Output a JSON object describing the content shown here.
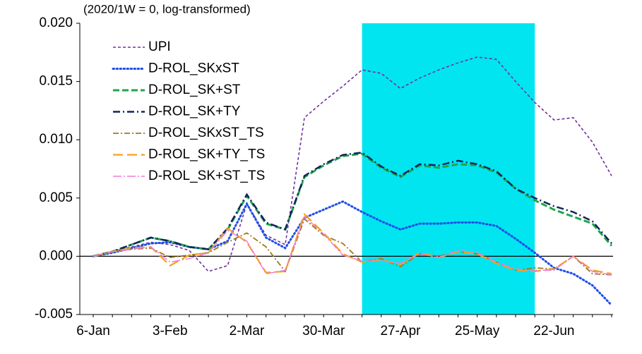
{
  "chart_data": {
    "type": "line",
    "subtitle": "(2020/1W = 0, log-transformed)",
    "categories": [
      "6-Jan",
      null,
      null,
      null,
      "3-Feb",
      null,
      null,
      null,
      "2-Mar",
      null,
      null,
      null,
      "30-Mar",
      null,
      null,
      null,
      "27-Apr",
      null,
      null,
      null,
      "25-May",
      null,
      null,
      null,
      "22-Jun",
      null,
      null,
      null
    ],
    "highlight": {
      "from": 14,
      "to": 23,
      "color": "#00e5f0"
    },
    "ylim": [
      -0.005,
      0.02
    ],
    "yticks": [
      -0.005,
      {
        "value": 0,
        "label": "0.000"
      },
      0.005,
      {
        "value": 0.01,
        "label": "0.010"
      },
      0.015,
      {
        "value": 0.02,
        "label": "0.020"
      }
    ],
    "series": [
      {
        "name": "UPI",
        "color": "#7030a0",
        "values": [
          0,
          0.0004,
          0.0008,
          0.0012,
          0.001,
          0.0005,
          -0.0013,
          -0.0008,
          0.0045,
          0.0018,
          0.001,
          0.0119,
          0.0133,
          0.0146,
          0.016,
          0.0157,
          0.0144,
          0.0153,
          0.016,
          0.0166,
          0.0171,
          0.0169,
          0.015,
          0.0132,
          0.0117,
          0.0119,
          0.0098,
          0.0069
        ]
      },
      {
        "name": "D-ROL_SKxST",
        "color": "#1f4ee8",
        "values": [
          0,
          0.0003,
          0.0007,
          0.0011,
          0.0012,
          0.0008,
          0.0006,
          0.0013,
          0.0045,
          0.0016,
          0.0007,
          0.0033,
          0.004,
          0.0047,
          0.0038,
          0.003,
          0.0023,
          0.0028,
          0.0028,
          0.0029,
          0.0029,
          0.0026,
          0.0015,
          0.0003,
          -0.001,
          -0.0015,
          -0.0025,
          -0.0042
        ]
      },
      {
        "name": "D-ROL_SK+ST",
        "color": "#1ea64a",
        "values": [
          0,
          0.0004,
          0.001,
          0.0016,
          0.0013,
          0.0008,
          0.0006,
          0.0023,
          0.0052,
          0.0028,
          0.0023,
          0.0068,
          0.0078,
          0.0086,
          0.0088,
          0.0076,
          0.0068,
          0.0078,
          0.0076,
          0.0079,
          0.0078,
          0.0072,
          0.0058,
          0.0048,
          0.004,
          0.0034,
          0.0028,
          0.0009
        ]
      },
      {
        "name": "D-ROL_SK+TY",
        "color": "#12245c",
        "values": [
          0,
          0.0004,
          0.001,
          0.0016,
          0.0013,
          0.0008,
          0.0006,
          0.0024,
          0.0053,
          0.0029,
          0.0023,
          0.0069,
          0.0079,
          0.0087,
          0.0089,
          0.0077,
          0.0069,
          0.0079,
          0.0078,
          0.0082,
          0.0079,
          0.0073,
          0.0058,
          0.005,
          0.0043,
          0.0038,
          0.003,
          0.0011
        ]
      },
      {
        "name": "D-ROL_SKxST_TS",
        "color": "#9c7a1c",
        "values": [
          0,
          0.0004,
          0.0006,
          0.0007,
          -0.0001,
          0.0001,
          0.0003,
          0.0012,
          0.002,
          0.0008,
          -0.0013,
          0.0032,
          0.0018,
          0.0011,
          -0.0005,
          -0.0002,
          -0.0009,
          0.0002,
          0.0,
          0.0004,
          0.0002,
          -0.0005,
          -0.0012,
          -0.001,
          -0.0011,
          0.0,
          -0.0015,
          -0.0016
        ]
      },
      {
        "name": "D-ROL_SK+TY_TS",
        "color": "#f5a020",
        "values": [
          0,
          0.0004,
          0.0007,
          0.0008,
          -0.0008,
          0.0001,
          0.0003,
          0.0024,
          0.0012,
          -0.0014,
          -0.0013,
          0.0036,
          0.002,
          0.0002,
          -0.0005,
          -0.0003,
          -0.0007,
          0.0003,
          -0.0001,
          0.0004,
          0.0002,
          -0.0006,
          -0.0012,
          -0.0013,
          -0.0011,
          0.0,
          -0.0012,
          -0.0015
        ]
      },
      {
        "name": "D-ROL_SK+ST_TS",
        "color": "#f07ad8",
        "values": [
          0,
          0.0004,
          0.0006,
          0.0008,
          -0.0005,
          -0.0002,
          0.0003,
          0.0022,
          0.0013,
          -0.0015,
          -0.0012,
          0.0034,
          0.0019,
          0.0001,
          -0.0004,
          -0.0004,
          -0.0006,
          0.0002,
          -0.0001,
          0.0005,
          0.0003,
          -0.0005,
          -0.0011,
          -0.0012,
          -0.0012,
          0.0,
          -0.0013,
          -0.0016
        ]
      }
    ]
  }
}
